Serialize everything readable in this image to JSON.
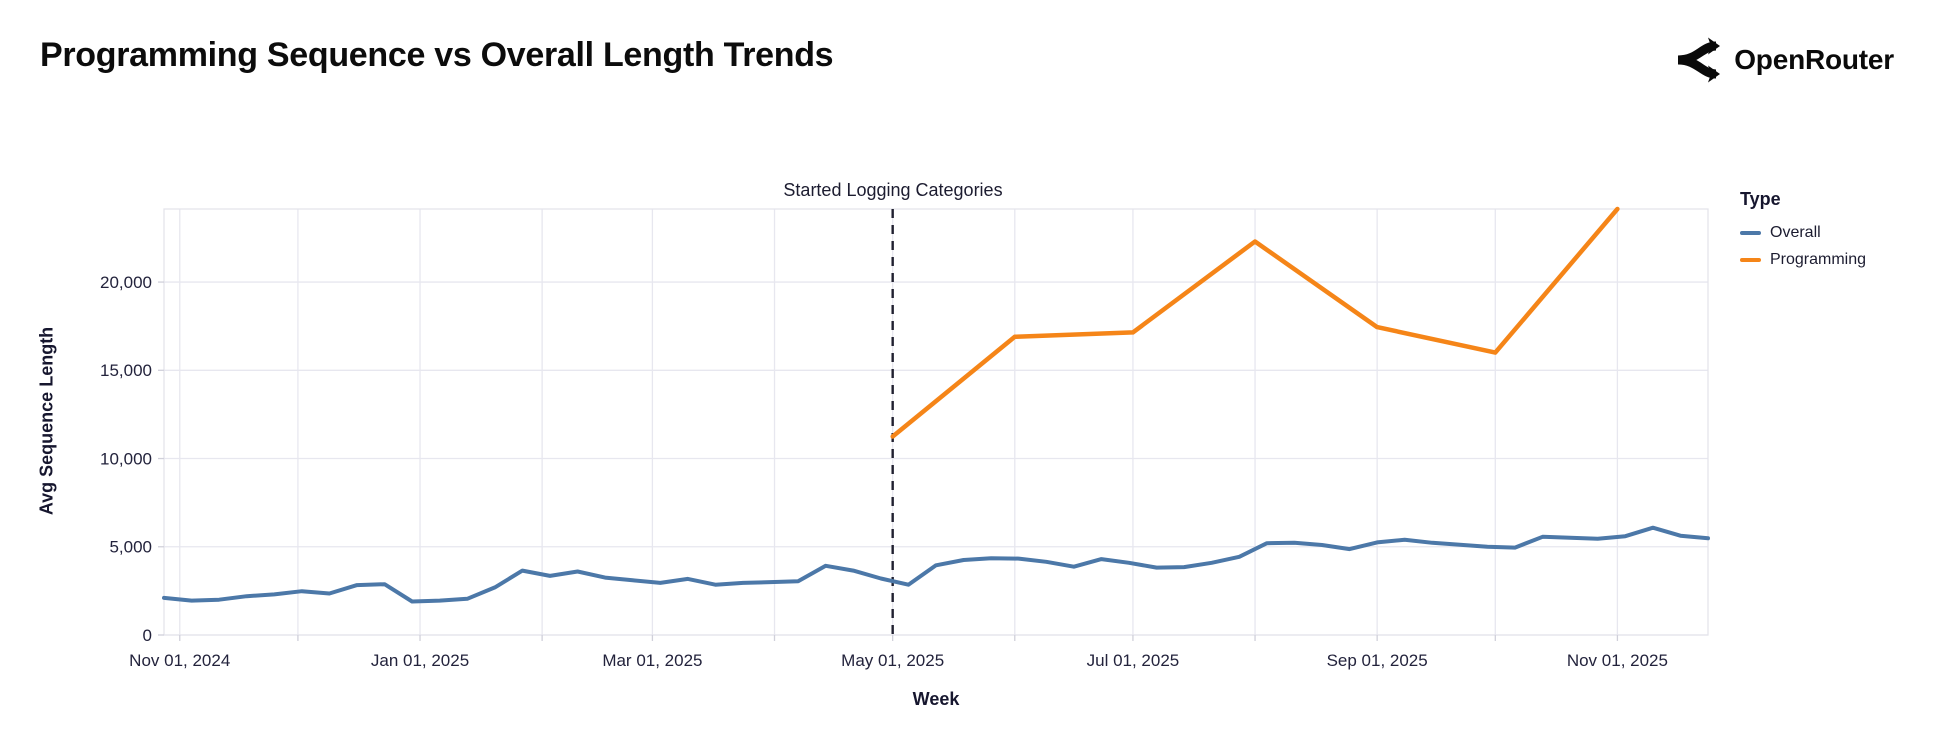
{
  "header": {
    "title": "Programming Sequence vs Overall Length Trends",
    "brand": "OpenRouter",
    "brand_icon": "openrouter-fork-arrows-icon"
  },
  "chart_data": {
    "type": "line",
    "title": "Programming Sequence vs Overall Length Trends",
    "xlabel": "Week",
    "ylabel": "Avg Sequence Length",
    "x_domain": [
      "2024-10-28",
      "2025-11-24"
    ],
    "ylim": [
      0,
      24140
    ],
    "grid": true,
    "legend_position": "right",
    "legend_title": "Type",
    "annotation": {
      "label": "Started Logging Categories",
      "date": "2025-05-01"
    },
    "x_ticks": [
      {
        "label": "Nov 01, 2024",
        "date": "2024-11-01"
      },
      {
        "label": "Jan 01, 2025",
        "date": "2025-01-01"
      },
      {
        "label": "Mar 01, 2025",
        "date": "2025-03-01"
      },
      {
        "label": "May 01, 2025",
        "date": "2025-05-01"
      },
      {
        "label": "Jul 01, 2025",
        "date": "2025-07-01"
      },
      {
        "label": "Sep 01, 2025",
        "date": "2025-09-01"
      },
      {
        "label": "Nov 01, 2025",
        "date": "2025-11-01"
      }
    ],
    "y_ticks": [
      {
        "label": "0",
        "value": 0
      },
      {
        "label": "5,000",
        "value": 5000
      },
      {
        "label": "10,000",
        "value": 10000
      },
      {
        "label": "15,000",
        "value": 15000
      },
      {
        "label": "20,000",
        "value": 20000
      }
    ],
    "month_gridlines": [
      "2024-11-01",
      "2024-12-01",
      "2025-01-01",
      "2025-02-01",
      "2025-03-01",
      "2025-04-01",
      "2025-05-01",
      "2025-06-01",
      "2025-07-01",
      "2025-08-01",
      "2025-09-01",
      "2025-10-01",
      "2025-11-01"
    ],
    "series": [
      {
        "name": "Overall",
        "color": "#4c78a8",
        "x": [
          "2024-10-28",
          "2024-11-04",
          "2024-11-11",
          "2024-11-18",
          "2024-11-25",
          "2024-12-02",
          "2024-12-09",
          "2024-12-16",
          "2024-12-23",
          "2024-12-30",
          "2025-01-06",
          "2025-01-13",
          "2025-01-20",
          "2025-01-27",
          "2025-02-03",
          "2025-02-10",
          "2025-02-17",
          "2025-02-24",
          "2025-03-03",
          "2025-03-10",
          "2025-03-17",
          "2025-03-24",
          "2025-03-31",
          "2025-04-07",
          "2025-04-14",
          "2025-04-21",
          "2025-04-28",
          "2025-05-05",
          "2025-05-12",
          "2025-05-19",
          "2025-05-26",
          "2025-06-02",
          "2025-06-09",
          "2025-06-16",
          "2025-06-23",
          "2025-06-30",
          "2025-07-07",
          "2025-07-14",
          "2025-07-21",
          "2025-07-28",
          "2025-08-04",
          "2025-08-11",
          "2025-08-18",
          "2025-08-25",
          "2025-09-01",
          "2025-09-08",
          "2025-09-15",
          "2025-09-22",
          "2025-09-29",
          "2025-10-06",
          "2025-10-13",
          "2025-10-20",
          "2025-10-27",
          "2025-11-03",
          "2025-11-10",
          "2025-11-17",
          "2025-11-24"
        ],
        "values": [
          2100,
          1950,
          2000,
          2200,
          2300,
          2480,
          2350,
          2830,
          2880,
          1900,
          1950,
          2050,
          2700,
          3650,
          3350,
          3600,
          3250,
          3100,
          2950,
          3180,
          2850,
          2950,
          3000,
          3050,
          3920,
          3650,
          3200,
          2850,
          3950,
          4250,
          4350,
          4330,
          4150,
          3870,
          4300,
          4090,
          3820,
          3850,
          4090,
          4430,
          5200,
          5225,
          5100,
          4870,
          5250,
          5400,
          5225,
          5110,
          5000,
          4950,
          5565,
          5510,
          5450,
          5600,
          6080,
          5625,
          5480
        ]
      },
      {
        "name": "Programming",
        "color": "#f58518",
        "x": [
          "2025-05-01",
          "2025-06-01",
          "2025-07-01",
          "2025-08-01",
          "2025-09-01",
          "2025-10-01",
          "2025-11-01"
        ],
        "values": [
          11250,
          16900,
          17150,
          22300,
          17450,
          16000,
          24140
        ]
      }
    ],
    "legend": {
      "title": "Type",
      "items": [
        {
          "label": "Overall",
          "color": "#4c78a8"
        },
        {
          "label": "Programming",
          "color": "#f58518"
        }
      ]
    }
  },
  "colors": {
    "background": "#ffffff",
    "grid": "#e7e7ef",
    "plot_border": "#e4e4ec",
    "tick_mark": "#d0d0da",
    "axis_text": "#23233c",
    "axis_title_text": "#16162e",
    "annotation_rule": "#202030",
    "title_text": "#0c0c0c",
    "overall_line": "#4c78a8",
    "programming_line": "#f58518"
  }
}
